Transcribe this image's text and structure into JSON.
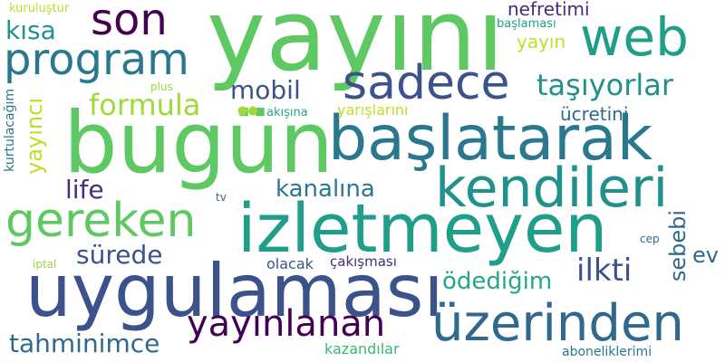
{
  "words": {
    "yayini": {
      "text": "yayını",
      "color": "#5ec962"
    },
    "bugun": {
      "text": "bugün",
      "color": "#5ec962"
    },
    "baslatarak": {
      "text": "başlatarak",
      "color": "#2a788e"
    },
    "izletmeyen": {
      "text": "izletmeyen",
      "color": "#1f9e89"
    },
    "uygulamasi": {
      "text": "uygulaması",
      "color": "#3b528b"
    },
    "uzerinden": {
      "text": "üzerinden",
      "color": "#31688e"
    },
    "kendileri": {
      "text": "kendileri",
      "color": "#21918c"
    },
    "gereken": {
      "text": "gereken",
      "color": "#5ec962"
    },
    "sadece": {
      "text": "sadece",
      "color": "#3b528b"
    },
    "web": {
      "text": "web",
      "color": "#1f9e89"
    },
    "son": {
      "text": "son",
      "color": "#440154"
    },
    "program": {
      "text": "program",
      "color": "#2a788e"
    },
    "yayinlanan": {
      "text": "yayınlanan",
      "color": "#440154"
    },
    "tasiyorlar": {
      "text": "taşıyorlar",
      "color": "#21918c"
    },
    "formula": {
      "text": "formula",
      "color": "#a0da39"
    },
    "mobil": {
      "text": "mobil",
      "color": "#3b528b"
    },
    "kisa": {
      "text": "kısa",
      "color": "#21918c"
    },
    "kanalina": {
      "text": "kanalına",
      "color": "#2a788e"
    },
    "tahminimce": {
      "text": "tahminimce",
      "color": "#31688e"
    },
    "surede": {
      "text": "sürede",
      "color": "#3b528b"
    },
    "ilkti": {
      "text": "ilkti",
      "color": "#3b528b"
    },
    "odedigim": {
      "text": "ödediğim",
      "color": "#22a884"
    },
    "life": {
      "text": "life",
      "color": "#472d7b"
    },
    "ucretini": {
      "text": "ücretini",
      "color": "#31688e"
    },
    "nefretimi": {
      "text": "nefretimi",
      "color": "#472d7b"
    },
    "yayin": {
      "text": "yayın",
      "color": "#bddf26"
    },
    "ev": {
      "text": "ev",
      "color": "#31688e"
    },
    "sebebi": {
      "text": "sebebi",
      "color": "#31688e"
    },
    "yayinci": {
      "text": "yayıncı",
      "color": "#bddf26"
    },
    "olacak": {
      "text": "olacak",
      "color": "#3b528b"
    },
    "cakismasi": {
      "text": "çakışması",
      "color": "#472d7b"
    },
    "kazandilar": {
      "text": "kazandılar",
      "color": "#35b779"
    },
    "aboneliklerimi": {
      "text": "aboneliklerimi",
      "color": "#2a788e"
    },
    "yarislarini": {
      "text": "yarışlarını",
      "color": "#bddf26"
    },
    "akisina": {
      "text": "akışına",
      "color": "#22a884"
    },
    "kurulustur": {
      "text": "kuruluştur",
      "color": "#bddf26"
    },
    "baslamasi": {
      "text": "başlaması",
      "color": "#1f9e89"
    },
    "kurtulacagim": {
      "text": "kurtulacağım",
      "color": "#2a788e"
    },
    "plus": {
      "text": "plus",
      "color": "#a0da39"
    },
    "tv": {
      "text": "tv",
      "color": "#31688e"
    },
    "cep": {
      "text": "cep",
      "color": "#31688e"
    },
    "iptal": {
      "text": "iptal",
      "color": "#a0da39"
    },
    "dots": {
      "text": "●●",
      "color": "#a0da39"
    }
  }
}
